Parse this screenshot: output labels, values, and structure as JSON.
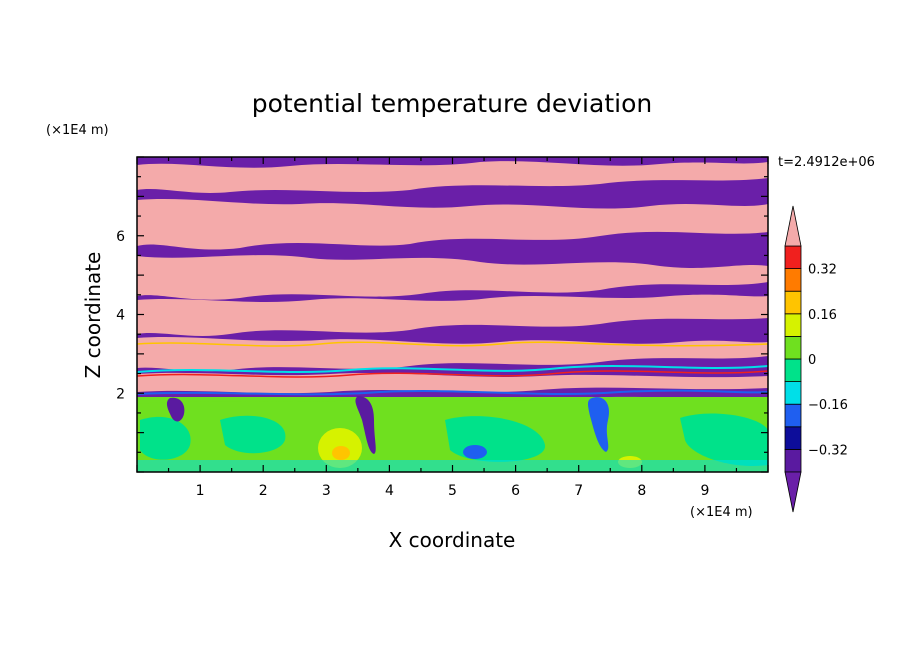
{
  "chart_data": {
    "type": "heatmap",
    "title": "potential temperature deviation",
    "xlabel": "X coordinate",
    "ylabel": "Z coordinate",
    "x_unit": "(×1E4 m)",
    "y_unit": "(×1E4 m)",
    "time_label": "t=2.4912e+06",
    "xlim": [
      0,
      10
    ],
    "ylim": [
      0,
      8
    ],
    "x_ticks": [
      1,
      2,
      3,
      4,
      5,
      6,
      7,
      8,
      9
    ],
    "y_ticks": [
      2,
      4,
      6
    ],
    "colorbar": {
      "levels": [
        -0.4,
        -0.32,
        -0.24,
        -0.16,
        -0.08,
        0,
        0.08,
        0.16,
        0.24,
        0.32,
        0.4
      ],
      "colors": [
        "#5a1aa0",
        "#0d0d9a",
        "#1f5ff0",
        "#00dfe8",
        "#00e28a",
        "#6fe01f",
        "#d6f200",
        "#ffc400",
        "#ff7b00",
        "#f0201e"
      ],
      "under_color": "#6a1fa8",
      "over_color": "#f4aaaa",
      "tick_labels": [
        "−0.32",
        "−0.16",
        "0",
        "0.16",
        "0.32"
      ],
      "tick_values": [
        -0.32,
        -0.16,
        0,
        0.16,
        0.32
      ]
    },
    "grid": false
  }
}
